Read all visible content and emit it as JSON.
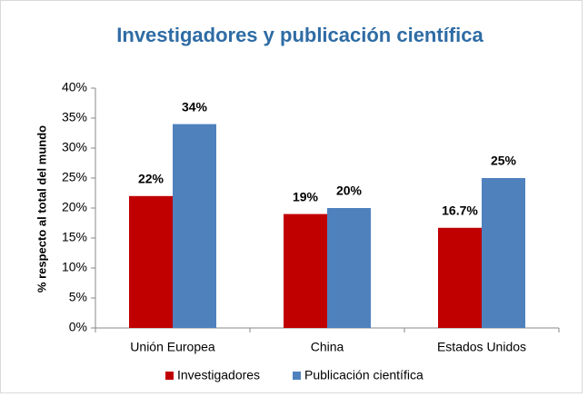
{
  "chart_data": {
    "type": "bar",
    "title": "Investigadores y publicación científica",
    "y_label": "% respecto al total del mundo",
    "categories": [
      "Unión Europea",
      "China",
      "Estados Unidos"
    ],
    "series": [
      {
        "name": "Investigadores",
        "color": "#c00000",
        "values": [
          22,
          19,
          16.7
        ],
        "value_labels": [
          "22%",
          "19%",
          "16.7%"
        ]
      },
      {
        "name": "Publicación científica",
        "color": "#4f81bd",
        "values": [
          34,
          20,
          25
        ],
        "value_labels": [
          "34%",
          "20%",
          "25%"
        ]
      }
    ],
    "ylim": [
      0,
      40
    ],
    "yticks": [
      {
        "value": 0,
        "label": "0%"
      },
      {
        "value": 5,
        "label": "5%"
      },
      {
        "value": 10,
        "label": "10%"
      },
      {
        "value": 15,
        "label": "15%"
      },
      {
        "value": 20,
        "label": "20%"
      },
      {
        "value": 25,
        "label": "25%"
      },
      {
        "value": 30,
        "label": "30%"
      },
      {
        "value": 35,
        "label": "35%"
      },
      {
        "value": 40,
        "label": "40%"
      }
    ],
    "grid": false,
    "legend": "bottom"
  }
}
